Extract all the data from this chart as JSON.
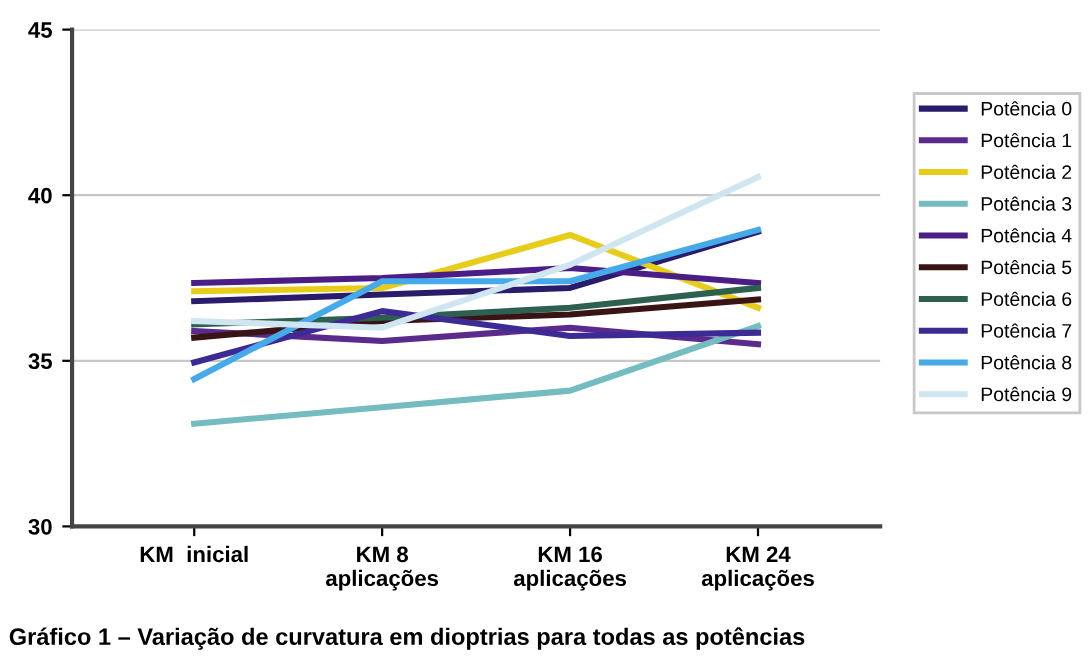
{
  "chart_data": {
    "type": "line",
    "categories": [
      "KM  inicial",
      "KM 8\naplicações",
      "KM 16\naplicações",
      "KM 24\naplicações"
    ],
    "series": [
      {
        "name": "Potência 0",
        "color": "#2b1b6b",
        "values": [
          36.8,
          37.0,
          37.2,
          38.9
        ]
      },
      {
        "name": "Potência 1",
        "color": "#5a2a8c",
        "values": [
          35.9,
          35.6,
          36.0,
          35.5
        ]
      },
      {
        "name": "Potência 2",
        "color": "#e8cc1a",
        "values": [
          37.1,
          37.2,
          38.8,
          36.6
        ]
      },
      {
        "name": "Potência 3",
        "color": "#74bcc0",
        "values": [
          33.1,
          33.6,
          34.1,
          36.05
        ]
      },
      {
        "name": "Potência 4",
        "color": "#4a1e86",
        "values": [
          37.35,
          37.5,
          37.8,
          37.35
        ]
      },
      {
        "name": "Potência 5",
        "color": "#3a1414",
        "values": [
          35.7,
          36.2,
          36.4,
          36.85
        ]
      },
      {
        "name": "Potência 6",
        "color": "#2d6050",
        "values": [
          36.1,
          36.3,
          36.6,
          37.2
        ]
      },
      {
        "name": "Potência 7",
        "color": "#3d2a94",
        "values": [
          34.95,
          36.5,
          35.75,
          35.85
        ]
      },
      {
        "name": "Potência 8",
        "color": "#46aaea",
        "values": [
          34.45,
          37.4,
          37.4,
          38.95
        ]
      },
      {
        "name": "Potência 9",
        "color": "#cfe6f0",
        "values": [
          36.2,
          36.0,
          37.9,
          40.55
        ]
      }
    ],
    "ylim": [
      30,
      45
    ],
    "yticks": [
      30,
      35,
      40,
      45
    ],
    "grid": "y",
    "legend": "right",
    "marker": "none",
    "line_style": "solid",
    "annotations": [
      "Gráfico 1 – Variação de curvatura em dioptrias para todas as potências"
    ]
  }
}
